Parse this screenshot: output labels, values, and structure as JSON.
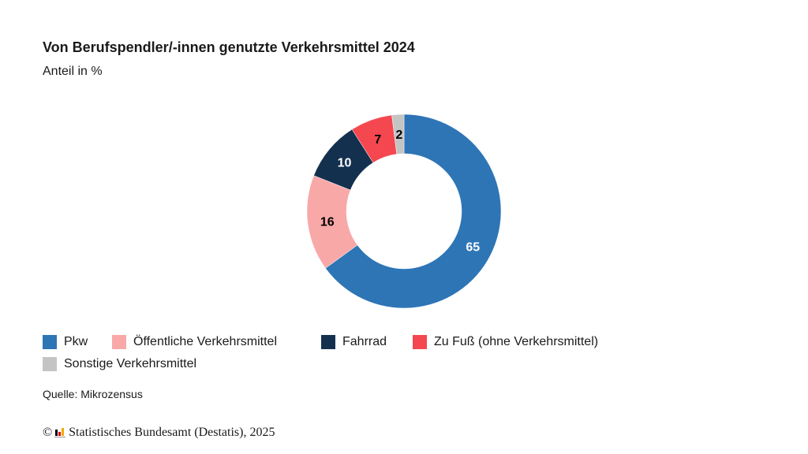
{
  "chart_data": {
    "type": "pie",
    "variant": "donut",
    "title": "Von Berufspendler/-innen genutzte Verkehrsmittel 2024",
    "subtitle": "Anteil in %",
    "categories": [
      "Pkw",
      "Öffentliche Verkehrsmittel",
      "Fahrrad",
      "Zu Fuß (ohne Verkehrsmittel)",
      "Sonstige Verkehrsmittel"
    ],
    "values": [
      65,
      16,
      10,
      7,
      2
    ],
    "colors": [
      "#2e75b6",
      "#f9a8a8",
      "#14304f",
      "#f5474f",
      "#c4c4c4"
    ],
    "label_colors": [
      "#ffffff",
      "#000000",
      "#ffffff",
      "#000000",
      "#000000"
    ],
    "start": "top",
    "direction": "clockwise",
    "legend_position": "bottom"
  },
  "source": "Quelle: Mikrozensus",
  "copyright": {
    "symbol": "©",
    "text": "Statistisches Bundesamt (Destatis), 2025",
    "logo_colors": [
      "#000000",
      "#d9000d",
      "#f5a800"
    ]
  }
}
